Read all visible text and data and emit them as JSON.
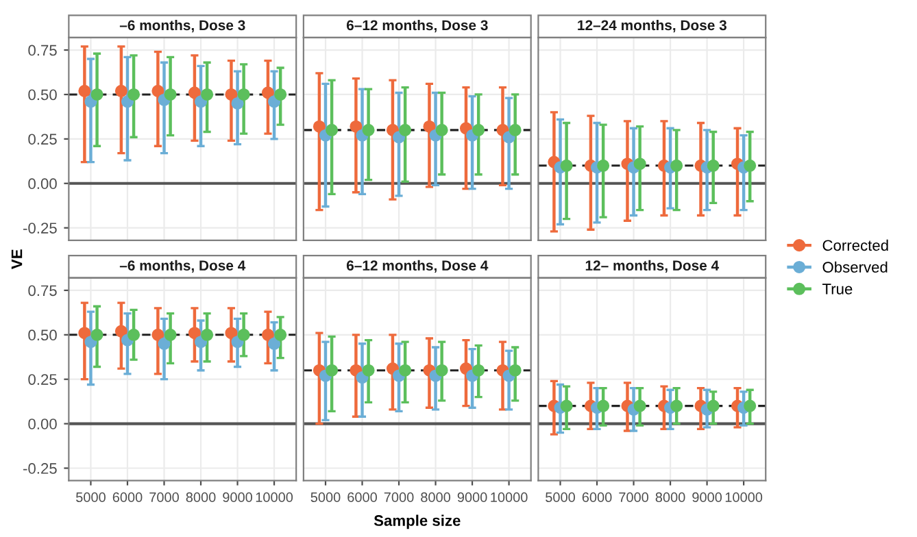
{
  "chart_data": [
    {
      "type": "scatter",
      "title": "–6 months, Dose 3",
      "ylabel": "VE",
      "categories": [
        "5000",
        "6000",
        "7000",
        "8000",
        "9000",
        "10000"
      ],
      "ylim": [
        -0.32,
        0.82
      ],
      "yticks": [
        {
          "value": -0.25,
          "label": "-0.25"
        },
        {
          "value": 0,
          "label": "0.00"
        },
        {
          "value": 0.25,
          "label": "0.25"
        },
        {
          "value": 0.5,
          "label": "0.50"
        },
        {
          "value": 0.75,
          "label": "0.75"
        }
      ],
      "tick_labels": "y",
      "grid": true,
      "marker": "circle",
      "legend": "right",
      "ref_lines": [
        {
          "axis": "y",
          "value": 0,
          "line_style": "solid",
          "color": "#555555"
        },
        {
          "axis": "y",
          "value": 0.5,
          "line_style": "dashed",
          "color": "#222222"
        }
      ],
      "series": [
        {
          "name": "Corrected",
          "color": "#ee6a3c",
          "values": [
            0.52,
            0.52,
            0.52,
            0.51,
            0.5,
            0.51
          ],
          "errors": [
            [
              0.12,
              0.77
            ],
            [
              0.17,
              0.77
            ],
            [
              0.21,
              0.74
            ],
            [
              0.24,
              0.72
            ],
            [
              0.24,
              0.69
            ],
            [
              0.28,
              0.69
            ]
          ]
        },
        {
          "name": "Observed",
          "color": "#6baed6",
          "values": [
            0.46,
            0.46,
            0.47,
            0.46,
            0.45,
            0.46
          ],
          "errors": [
            [
              0.12,
              0.7
            ],
            [
              0.13,
              0.71
            ],
            [
              0.17,
              0.68
            ],
            [
              0.21,
              0.66
            ],
            [
              0.22,
              0.63
            ],
            [
              0.25,
              0.63
            ]
          ]
        },
        {
          "name": "True",
          "color": "#5cbf5c",
          "values": [
            0.5,
            0.5,
            0.5,
            0.5,
            0.5,
            0.5
          ],
          "errors": [
            [
              0.21,
              0.73
            ],
            [
              0.26,
              0.72
            ],
            [
              0.27,
              0.71
            ],
            [
              0.29,
              0.68
            ],
            [
              0.28,
              0.67
            ],
            [
              0.33,
              0.65
            ]
          ]
        }
      ]
    },
    {
      "type": "scatter",
      "title": "6–12 months, Dose 3",
      "categories": [
        "5000",
        "6000",
        "7000",
        "8000",
        "9000",
        "10000"
      ],
      "ylim": [
        -0.32,
        0.82
      ],
      "yticks": [
        {
          "value": -0.25,
          "label": null
        },
        {
          "value": 0,
          "label": null
        },
        {
          "value": 0.25,
          "label": null
        },
        {
          "value": 0.5,
          "label": null
        },
        {
          "value": 0.75,
          "label": null
        }
      ],
      "tick_labels": false,
      "grid": true,
      "marker": "circle",
      "ref_lines": [
        {
          "axis": "y",
          "value": 0,
          "line_style": "solid",
          "color": "#555555"
        },
        {
          "axis": "y",
          "value": 0.3,
          "line_style": "dashed",
          "color": "#222222"
        }
      ],
      "series": [
        {
          "color": "#ee6a3c",
          "values": [
            0.32,
            0.32,
            0.3,
            0.32,
            0.31,
            0.3
          ],
          "errors": [
            [
              -0.15,
              0.62
            ],
            [
              -0.05,
              0.59
            ],
            [
              -0.09,
              0.58
            ],
            [
              -0.02,
              0.56
            ],
            [
              -0.03,
              0.54
            ],
            [
              -0.01,
              0.54
            ]
          ]
        },
        {
          "color": "#6baed6",
          "values": [
            0.27,
            0.27,
            0.26,
            0.27,
            0.27,
            0.26
          ],
          "errors": [
            [
              -0.13,
              0.56
            ],
            [
              -0.06,
              0.53
            ],
            [
              -0.07,
              0.51
            ],
            [
              -0.01,
              0.51
            ],
            [
              -0.03,
              0.49
            ],
            [
              -0.03,
              0.48
            ]
          ]
        },
        {
          "color": "#5cbf5c",
          "values": [
            0.3,
            0.3,
            0.3,
            0.3,
            0.3,
            0.3
          ],
          "errors": [
            [
              -0.06,
              0.58
            ],
            [
              0.02,
              0.53
            ],
            [
              0.01,
              0.54
            ],
            [
              0.05,
              0.51
            ],
            [
              0.05,
              0.5
            ],
            [
              0.05,
              0.5
            ]
          ]
        }
      ]
    },
    {
      "type": "scatter",
      "title": "12–24 months, Dose 3",
      "categories": [
        "5000",
        "6000",
        "7000",
        "8000",
        "9000",
        "10000"
      ],
      "ylim": [
        -0.32,
        0.82
      ],
      "yticks": [
        {
          "value": -0.25,
          "label": null
        },
        {
          "value": 0,
          "label": null
        },
        {
          "value": 0.25,
          "label": null
        },
        {
          "value": 0.5,
          "label": null
        },
        {
          "value": 0.75,
          "label": null
        }
      ],
      "tick_labels": false,
      "grid": true,
      "marker": "circle",
      "ref_lines": [
        {
          "axis": "y",
          "value": 0,
          "line_style": "solid",
          "color": "#555555"
        },
        {
          "axis": "y",
          "value": 0.1,
          "line_style": "dashed",
          "color": "#222222"
        }
      ],
      "series": [
        {
          "color": "#ee6a3c",
          "values": [
            0.12,
            0.1,
            0.11,
            0.1,
            0.1,
            0.11
          ],
          "errors": [
            [
              -0.27,
              0.4
            ],
            [
              -0.26,
              0.38
            ],
            [
              -0.21,
              0.35
            ],
            [
              -0.18,
              0.35
            ],
            [
              -0.18,
              0.34
            ],
            [
              -0.18,
              0.31
            ]
          ]
        },
        {
          "color": "#6baed6",
          "values": [
            0.09,
            0.09,
            0.09,
            0.09,
            0.09,
            0.09
          ],
          "errors": [
            [
              -0.23,
              0.36
            ],
            [
              -0.22,
              0.34
            ],
            [
              -0.18,
              0.31
            ],
            [
              -0.14,
              0.31
            ],
            [
              -0.15,
              0.3
            ],
            [
              -0.15,
              0.27
            ]
          ]
        },
        {
          "color": "#5cbf5c",
          "values": [
            0.1,
            0.1,
            0.11,
            0.1,
            0.1,
            0.1
          ],
          "errors": [
            [
              -0.2,
              0.34
            ],
            [
              -0.19,
              0.33
            ],
            [
              -0.15,
              0.32
            ],
            [
              -0.15,
              0.3
            ],
            [
              -0.11,
              0.29
            ],
            [
              -0.1,
              0.29
            ]
          ]
        }
      ]
    },
    {
      "type": "scatter",
      "title": "–6 months, Dose 4",
      "categories": [
        "5000",
        "6000",
        "7000",
        "8000",
        "9000",
        "10000"
      ],
      "ylim": [
        -0.32,
        0.82
      ],
      "yticks": [
        {
          "value": -0.25,
          "label": "-0.25"
        },
        {
          "value": 0,
          "label": "0.00"
        },
        {
          "value": 0.25,
          "label": "0.25"
        },
        {
          "value": 0.5,
          "label": "0.50"
        },
        {
          "value": 0.75,
          "label": "0.75"
        }
      ],
      "grid": true,
      "marker": "circle",
      "ref_lines": [
        {
          "axis": "y",
          "value": 0,
          "line_style": "solid",
          "color": "#555555"
        },
        {
          "axis": "y",
          "value": 0.5,
          "line_style": "dashed",
          "color": "#222222"
        }
      ],
      "series": [
        {
          "color": "#ee6a3c",
          "values": [
            0.51,
            0.52,
            0.5,
            0.51,
            0.51,
            0.5
          ],
          "errors": [
            [
              0.25,
              0.68
            ],
            [
              0.31,
              0.68
            ],
            [
              0.28,
              0.65
            ],
            [
              0.35,
              0.65
            ],
            [
              0.35,
              0.65
            ],
            [
              0.34,
              0.63
            ]
          ]
        },
        {
          "color": "#6baed6",
          "values": [
            0.46,
            0.47,
            0.45,
            0.46,
            0.46,
            0.45
          ],
          "errors": [
            [
              0.22,
              0.63
            ],
            [
              0.28,
              0.62
            ],
            [
              0.25,
              0.59
            ],
            [
              0.3,
              0.58
            ],
            [
              0.32,
              0.59
            ],
            [
              0.3,
              0.57
            ]
          ]
        },
        {
          "color": "#5cbf5c",
          "values": [
            0.5,
            0.5,
            0.5,
            0.5,
            0.5,
            0.5
          ],
          "errors": [
            [
              0.32,
              0.66
            ],
            [
              0.36,
              0.64
            ],
            [
              0.34,
              0.62
            ],
            [
              0.35,
              0.62
            ],
            [
              0.38,
              0.62
            ],
            [
              0.37,
              0.6
            ]
          ]
        }
      ]
    },
    {
      "type": "scatter",
      "title": "6–12 months, Dose 4",
      "xlabel": "Sample size",
      "categories": [
        "5000",
        "6000",
        "7000",
        "8000",
        "9000",
        "10000"
      ],
      "ylim": [
        -0.32,
        0.82
      ],
      "yticks": [
        {
          "value": -0.25,
          "label": null
        },
        {
          "value": 0,
          "label": null
        },
        {
          "value": 0.25,
          "label": null
        },
        {
          "value": 0.5,
          "label": null
        },
        {
          "value": 0.75,
          "label": null
        }
      ],
      "tick_labels": "x",
      "grid": true,
      "marker": "circle",
      "ref_lines": [
        {
          "axis": "y",
          "value": 0,
          "line_style": "solid",
          "color": "#555555"
        },
        {
          "axis": "y",
          "value": 0.3,
          "line_style": "dashed",
          "color": "#222222"
        }
      ],
      "series": [
        {
          "color": "#ee6a3c",
          "values": [
            0.3,
            0.3,
            0.31,
            0.3,
            0.31,
            0.3
          ],
          "errors": [
            [
              0.0,
              0.51
            ],
            [
              0.04,
              0.5
            ],
            [
              0.08,
              0.5
            ],
            [
              0.09,
              0.48
            ],
            [
              0.1,
              0.47
            ],
            [
              0.08,
              0.46
            ]
          ]
        },
        {
          "color": "#6baed6",
          "values": [
            0.27,
            0.26,
            0.27,
            0.27,
            0.27,
            0.27
          ],
          "errors": [
            [
              0.02,
              0.46
            ],
            [
              0.04,
              0.45
            ],
            [
              0.07,
              0.45
            ],
            [
              0.08,
              0.43
            ],
            [
              0.09,
              0.42
            ],
            [
              0.08,
              0.41
            ]
          ]
        },
        {
          "color": "#5cbf5c",
          "values": [
            0.3,
            0.3,
            0.3,
            0.3,
            0.3,
            0.3
          ],
          "errors": [
            [
              0.07,
              0.49
            ],
            [
              0.12,
              0.47
            ],
            [
              0.12,
              0.46
            ],
            [
              0.13,
              0.46
            ],
            [
              0.15,
              0.44
            ],
            [
              0.13,
              0.43
            ]
          ]
        }
      ]
    },
    {
      "type": "scatter",
      "title": "12– months, Dose 4",
      "categories": [
        "5000",
        "6000",
        "7000",
        "8000",
        "9000",
        "10000"
      ],
      "ylim": [
        -0.32,
        0.82
      ],
      "yticks": [
        {
          "value": -0.25,
          "label": null
        },
        {
          "value": 0,
          "label": null
        },
        {
          "value": 0.25,
          "label": null
        },
        {
          "value": 0.5,
          "label": null
        },
        {
          "value": 0.75,
          "label": null
        }
      ],
      "tick_labels": "x",
      "grid": true,
      "marker": "circle",
      "ref_lines": [
        {
          "axis": "y",
          "value": 0,
          "line_style": "solid",
          "color": "#555555"
        },
        {
          "axis": "y",
          "value": 0.1,
          "line_style": "dashed",
          "color": "#222222"
        }
      ],
      "series": [
        {
          "color": "#ee6a3c",
          "values": [
            0.1,
            0.1,
            0.1,
            0.1,
            0.1,
            0.1
          ],
          "errors": [
            [
              -0.06,
              0.24
            ],
            [
              -0.03,
              0.23
            ],
            [
              -0.04,
              0.23
            ],
            [
              -0.03,
              0.21
            ],
            [
              -0.03,
              0.2
            ],
            [
              -0.02,
              0.2
            ]
          ]
        },
        {
          "color": "#6baed6",
          "values": [
            0.09,
            0.09,
            0.08,
            0.09,
            0.08,
            0.09
          ],
          "errors": [
            [
              -0.05,
              0.22
            ],
            [
              -0.03,
              0.2
            ],
            [
              -0.04,
              0.2
            ],
            [
              -0.03,
              0.19
            ],
            [
              -0.02,
              0.19
            ],
            [
              -0.01,
              0.18
            ]
          ]
        },
        {
          "color": "#5cbf5c",
          "values": [
            0.1,
            0.1,
            0.1,
            0.1,
            0.1,
            0.1
          ],
          "errors": [
            [
              -0.03,
              0.21
            ],
            [
              -0.01,
              0.2
            ],
            [
              -0.01,
              0.2
            ],
            [
              0.0,
              0.2
            ],
            [
              0.0,
              0.18
            ],
            [
              0.0,
              0.19
            ]
          ]
        }
      ]
    }
  ]
}
